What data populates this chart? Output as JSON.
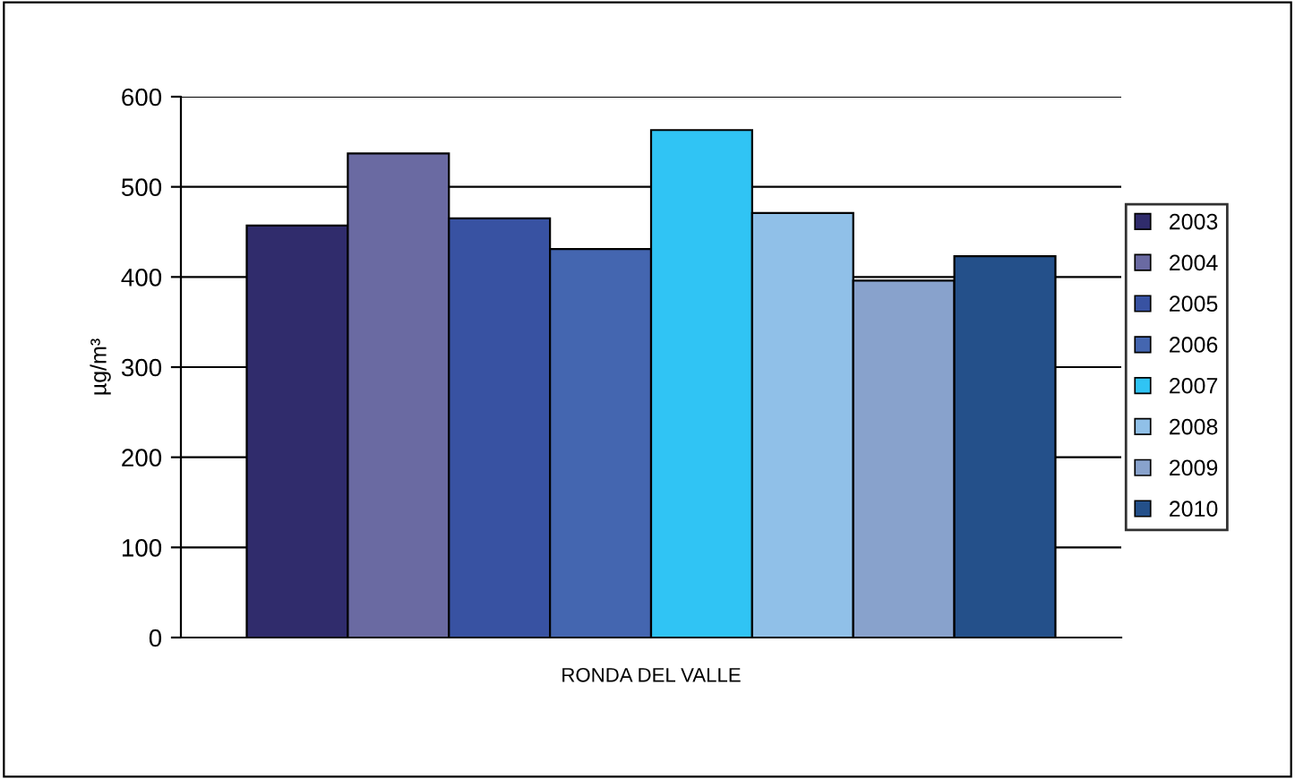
{
  "chart_data": {
    "type": "bar",
    "categories": [
      "RONDA DEL VALLE"
    ],
    "ylabel": "µg/m³",
    "ylim": [
      0,
      600
    ],
    "yticks": [
      0,
      100,
      200,
      300,
      400,
      500,
      600
    ],
    "grid": "y",
    "legend": "right",
    "series": [
      {
        "name": "2003",
        "color": "#302c6c",
        "values": [
          457
        ]
      },
      {
        "name": "2004",
        "color": "#6a6aa2",
        "values": [
          537
        ]
      },
      {
        "name": "2005",
        "color": "#3852a2",
        "values": [
          465
        ]
      },
      {
        "name": "2006",
        "color": "#4466b0",
        "values": [
          431
        ]
      },
      {
        "name": "2007",
        "color": "#30c4f4",
        "values": [
          563
        ]
      },
      {
        "name": "2008",
        "color": "#90c0e8",
        "values": [
          471
        ]
      },
      {
        "name": "2009",
        "color": "#88a2cc",
        "values": [
          396
        ]
      },
      {
        "name": "2010",
        "color": "#24508a",
        "values": [
          423
        ]
      }
    ]
  }
}
